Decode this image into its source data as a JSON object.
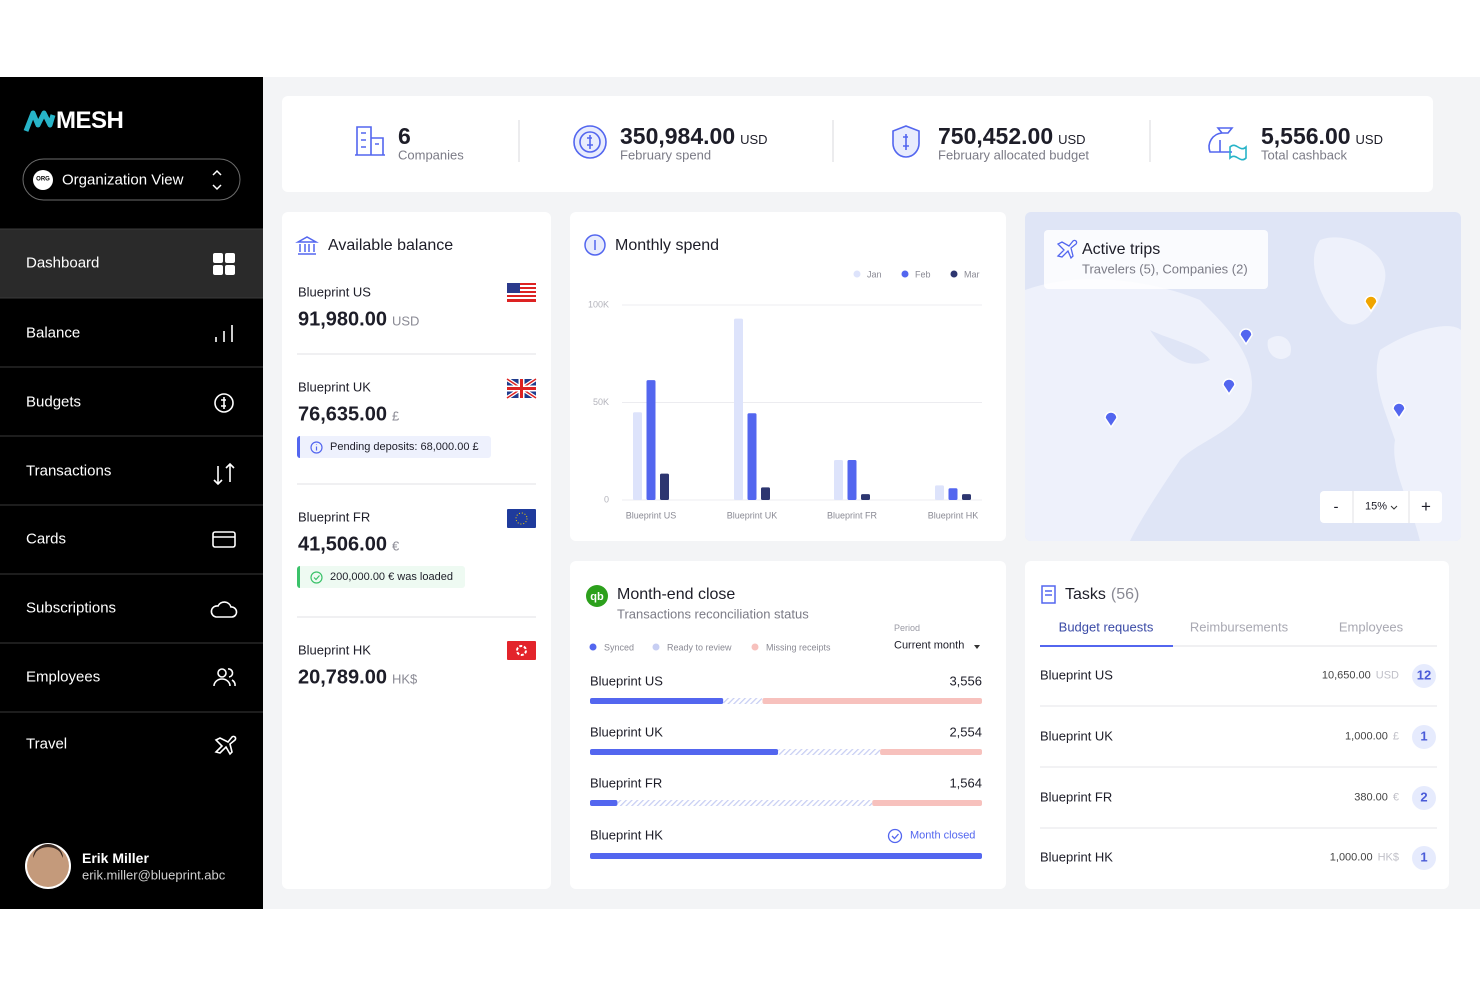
{
  "sidebar": {
    "logo": "MESH",
    "org_badge": "ORG",
    "view": "Organization View",
    "nav": [
      "Dashboard",
      "Balance",
      "Budgets",
      "Transactions",
      "Cards",
      "Subscriptions",
      "Employees",
      "Travel"
    ],
    "user": {
      "name": "Erik Miller",
      "email": "erik.miller@blueprint.abc"
    }
  },
  "stats": [
    {
      "value": "6",
      "label": "Companies"
    },
    {
      "value": "350,984.00",
      "unit": "USD",
      "label": "February spend"
    },
    {
      "value": "750,452.00",
      "unit": "USD",
      "label": "February allocated budget"
    },
    {
      "value": "5,556.00",
      "unit": "USD",
      "label": "Total cashback"
    }
  ],
  "balance": {
    "title": "Available balance",
    "accounts": [
      {
        "name": "Blueprint US",
        "amount": "91,980.00",
        "currency": "USD"
      },
      {
        "name": "Blueprint UK",
        "amount": "76,635.00",
        "currency": "£",
        "note": "Pending deposits: 68,000.00 £"
      },
      {
        "name": "Blueprint FR",
        "amount": "41,506.00",
        "currency": "€",
        "note": "200,000.00 € was loaded"
      },
      {
        "name": "Blueprint HK",
        "amount": "20,789.00",
        "currency": "HK$"
      }
    ]
  },
  "chart_data": {
    "type": "bar",
    "title": "Monthly spend",
    "categories": [
      "Blueprint US",
      "Blueprint UK",
      "Blueprint FR",
      "Blueprint HK"
    ],
    "series": [
      {
        "name": "Jan",
        "color": "#dde3fb",
        "values": [
          45000,
          93000,
          20500,
          7500
        ]
      },
      {
        "name": "Feb",
        "color": "#5366ef",
        "values": [
          61500,
          44500,
          20500,
          6000
        ]
      },
      {
        "name": "Mar",
        "color": "#2d3670",
        "values": [
          13500,
          6500,
          3000,
          3000
        ]
      }
    ],
    "ylim": [
      0,
      100000
    ],
    "yticks": [
      0,
      {
        "value": 50000,
        "label": "50K"
      },
      {
        "value": 100000,
        "label": "100K"
      }
    ],
    "grid": true,
    "legend": "top-right"
  },
  "trips": {
    "title": "Active trips",
    "subtitle": "Travelers (5), Companies (2)",
    "zoom_out": "-",
    "zoom": "15%",
    "zoom_in": "+"
  },
  "month_end": {
    "title": "Month-end close",
    "subtitle": "Transactions reconciliation status",
    "legend": [
      "Synced",
      "Ready to review",
      "Missing receipts"
    ],
    "colors": [
      "#5366ef",
      "#c7cef3",
      "#f7c1bd"
    ],
    "period_label": "Period",
    "period": "Current month",
    "rows": [
      {
        "name": "Blueprint US",
        "count": "3,556",
        "segments": [
          34,
          10,
          56
        ]
      },
      {
        "name": "Blueprint UK",
        "count": "2,554",
        "segments": [
          48,
          26,
          26
        ]
      },
      {
        "name": "Blueprint FR",
        "count": "1,564",
        "segments": [
          7,
          65,
          28
        ]
      },
      {
        "name": "Blueprint HK",
        "status": "Month closed",
        "segments": [
          100,
          0,
          0
        ]
      }
    ]
  },
  "tasks": {
    "title": "Tasks",
    "count": "(56)",
    "tabs": [
      "Budget requests",
      "Reimbursements",
      "Employees"
    ],
    "rows": [
      {
        "name": "Blueprint US",
        "amount": "10,650.00",
        "currency": "USD",
        "count": "12"
      },
      {
        "name": "Blueprint UK",
        "amount": "1,000.00",
        "currency": "£",
        "count": "1"
      },
      {
        "name": "Blueprint FR",
        "amount": "380.00",
        "currency": "€",
        "count": "2"
      },
      {
        "name": "Blueprint HK",
        "amount": "1,000.00",
        "currency": "HK$",
        "count": "1"
      }
    ]
  }
}
